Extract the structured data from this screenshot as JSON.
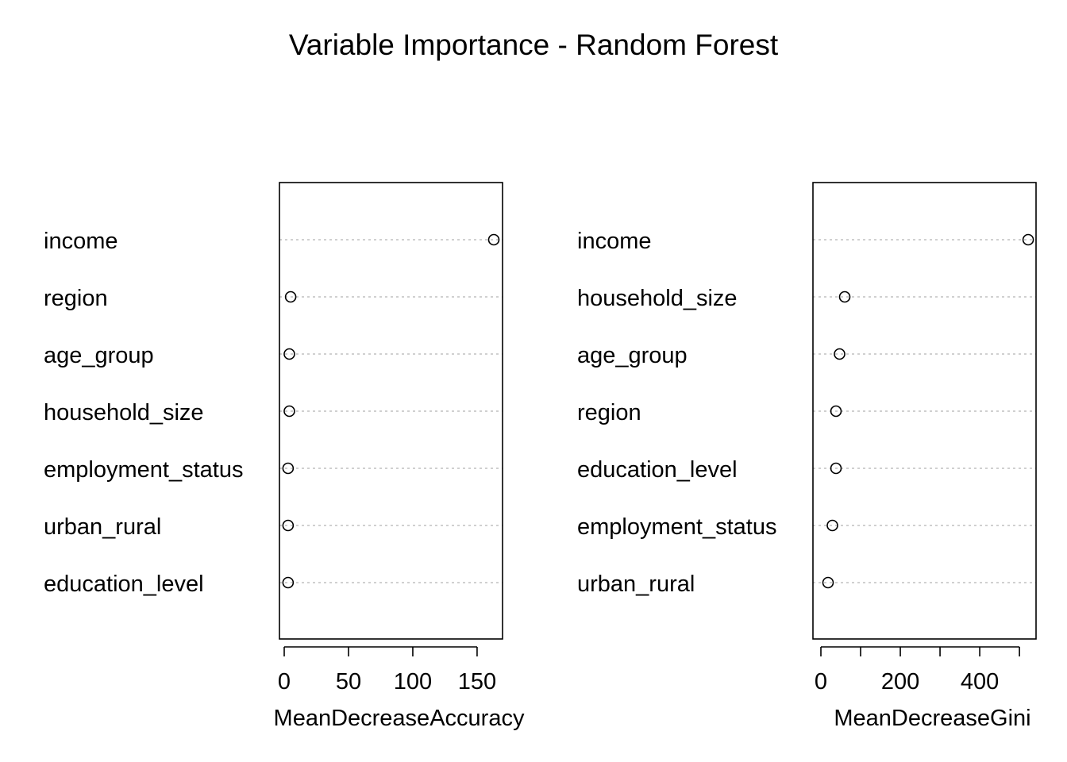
{
  "title": "Variable Importance - Random Forest",
  "chart_data": [
    {
      "type": "scatter",
      "subtype": "dotchart",
      "xlabel": "MeanDecreaseAccuracy",
      "xlim": [
        0,
        170
      ],
      "xticks": [
        0,
        50,
        100,
        150
      ],
      "xtick_labels": [
        "0",
        "50",
        "100",
        "150"
      ],
      "points": [
        {
          "label": "income",
          "value": 163
        },
        {
          "label": "region",
          "value": 5
        },
        {
          "label": "age_group",
          "value": 4
        },
        {
          "label": "household_size",
          "value": 4
        },
        {
          "label": "employment_status",
          "value": 3
        },
        {
          "label": "urban_rural",
          "value": 3
        },
        {
          "label": "education_level",
          "value": 3
        }
      ],
      "grid": "dotted horizontal"
    },
    {
      "type": "scatter",
      "subtype": "dotchart",
      "xlabel": "MeanDecreaseGini",
      "xlim": [
        0,
        540
      ],
      "xticks": [
        0,
        100,
        200,
        300,
        400,
        500
      ],
      "xtick_labels": [
        "0",
        "",
        "200",
        "",
        "400",
        ""
      ],
      "points": [
        {
          "label": "income",
          "value": 522
        },
        {
          "label": "household_size",
          "value": 60
        },
        {
          "label": "age_group",
          "value": 47
        },
        {
          "label": "region",
          "value": 38
        },
        {
          "label": "education_level",
          "value": 38
        },
        {
          "label": "employment_status",
          "value": 29
        },
        {
          "label": "urban_rural",
          "value": 18
        }
      ],
      "grid": "dotted horizontal"
    }
  ]
}
